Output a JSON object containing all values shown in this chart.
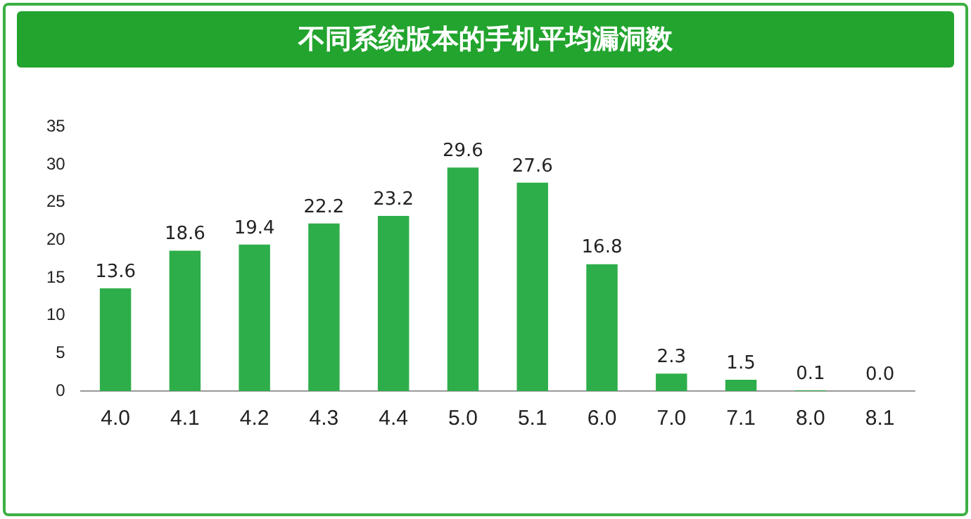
{
  "chart_data": {
    "type": "bar",
    "title": "不同系统版本的手机平均漏洞数",
    "categories": [
      "4.0",
      "4.1",
      "4.2",
      "4.3",
      "4.4",
      "5.0",
      "5.1",
      "6.0",
      "7.0",
      "7.1",
      "8.0",
      "8.1"
    ],
    "values": [
      13.6,
      18.6,
      19.4,
      22.2,
      23.2,
      29.6,
      27.6,
      16.8,
      2.3,
      1.5,
      0.1,
      0.0
    ],
    "value_labels": [
      "13.6",
      "18.6",
      "19.4",
      "22.2",
      "23.2",
      "29.6",
      "27.6",
      "16.8",
      "2.3",
      "1.5",
      "0.1",
      "0.0"
    ],
    "color": "#2eae4a",
    "ylim": [
      0,
      35
    ],
    "yticks": [
      0,
      5,
      10,
      15,
      20,
      25,
      30,
      35
    ],
    "grid": false,
    "legend": false
  }
}
